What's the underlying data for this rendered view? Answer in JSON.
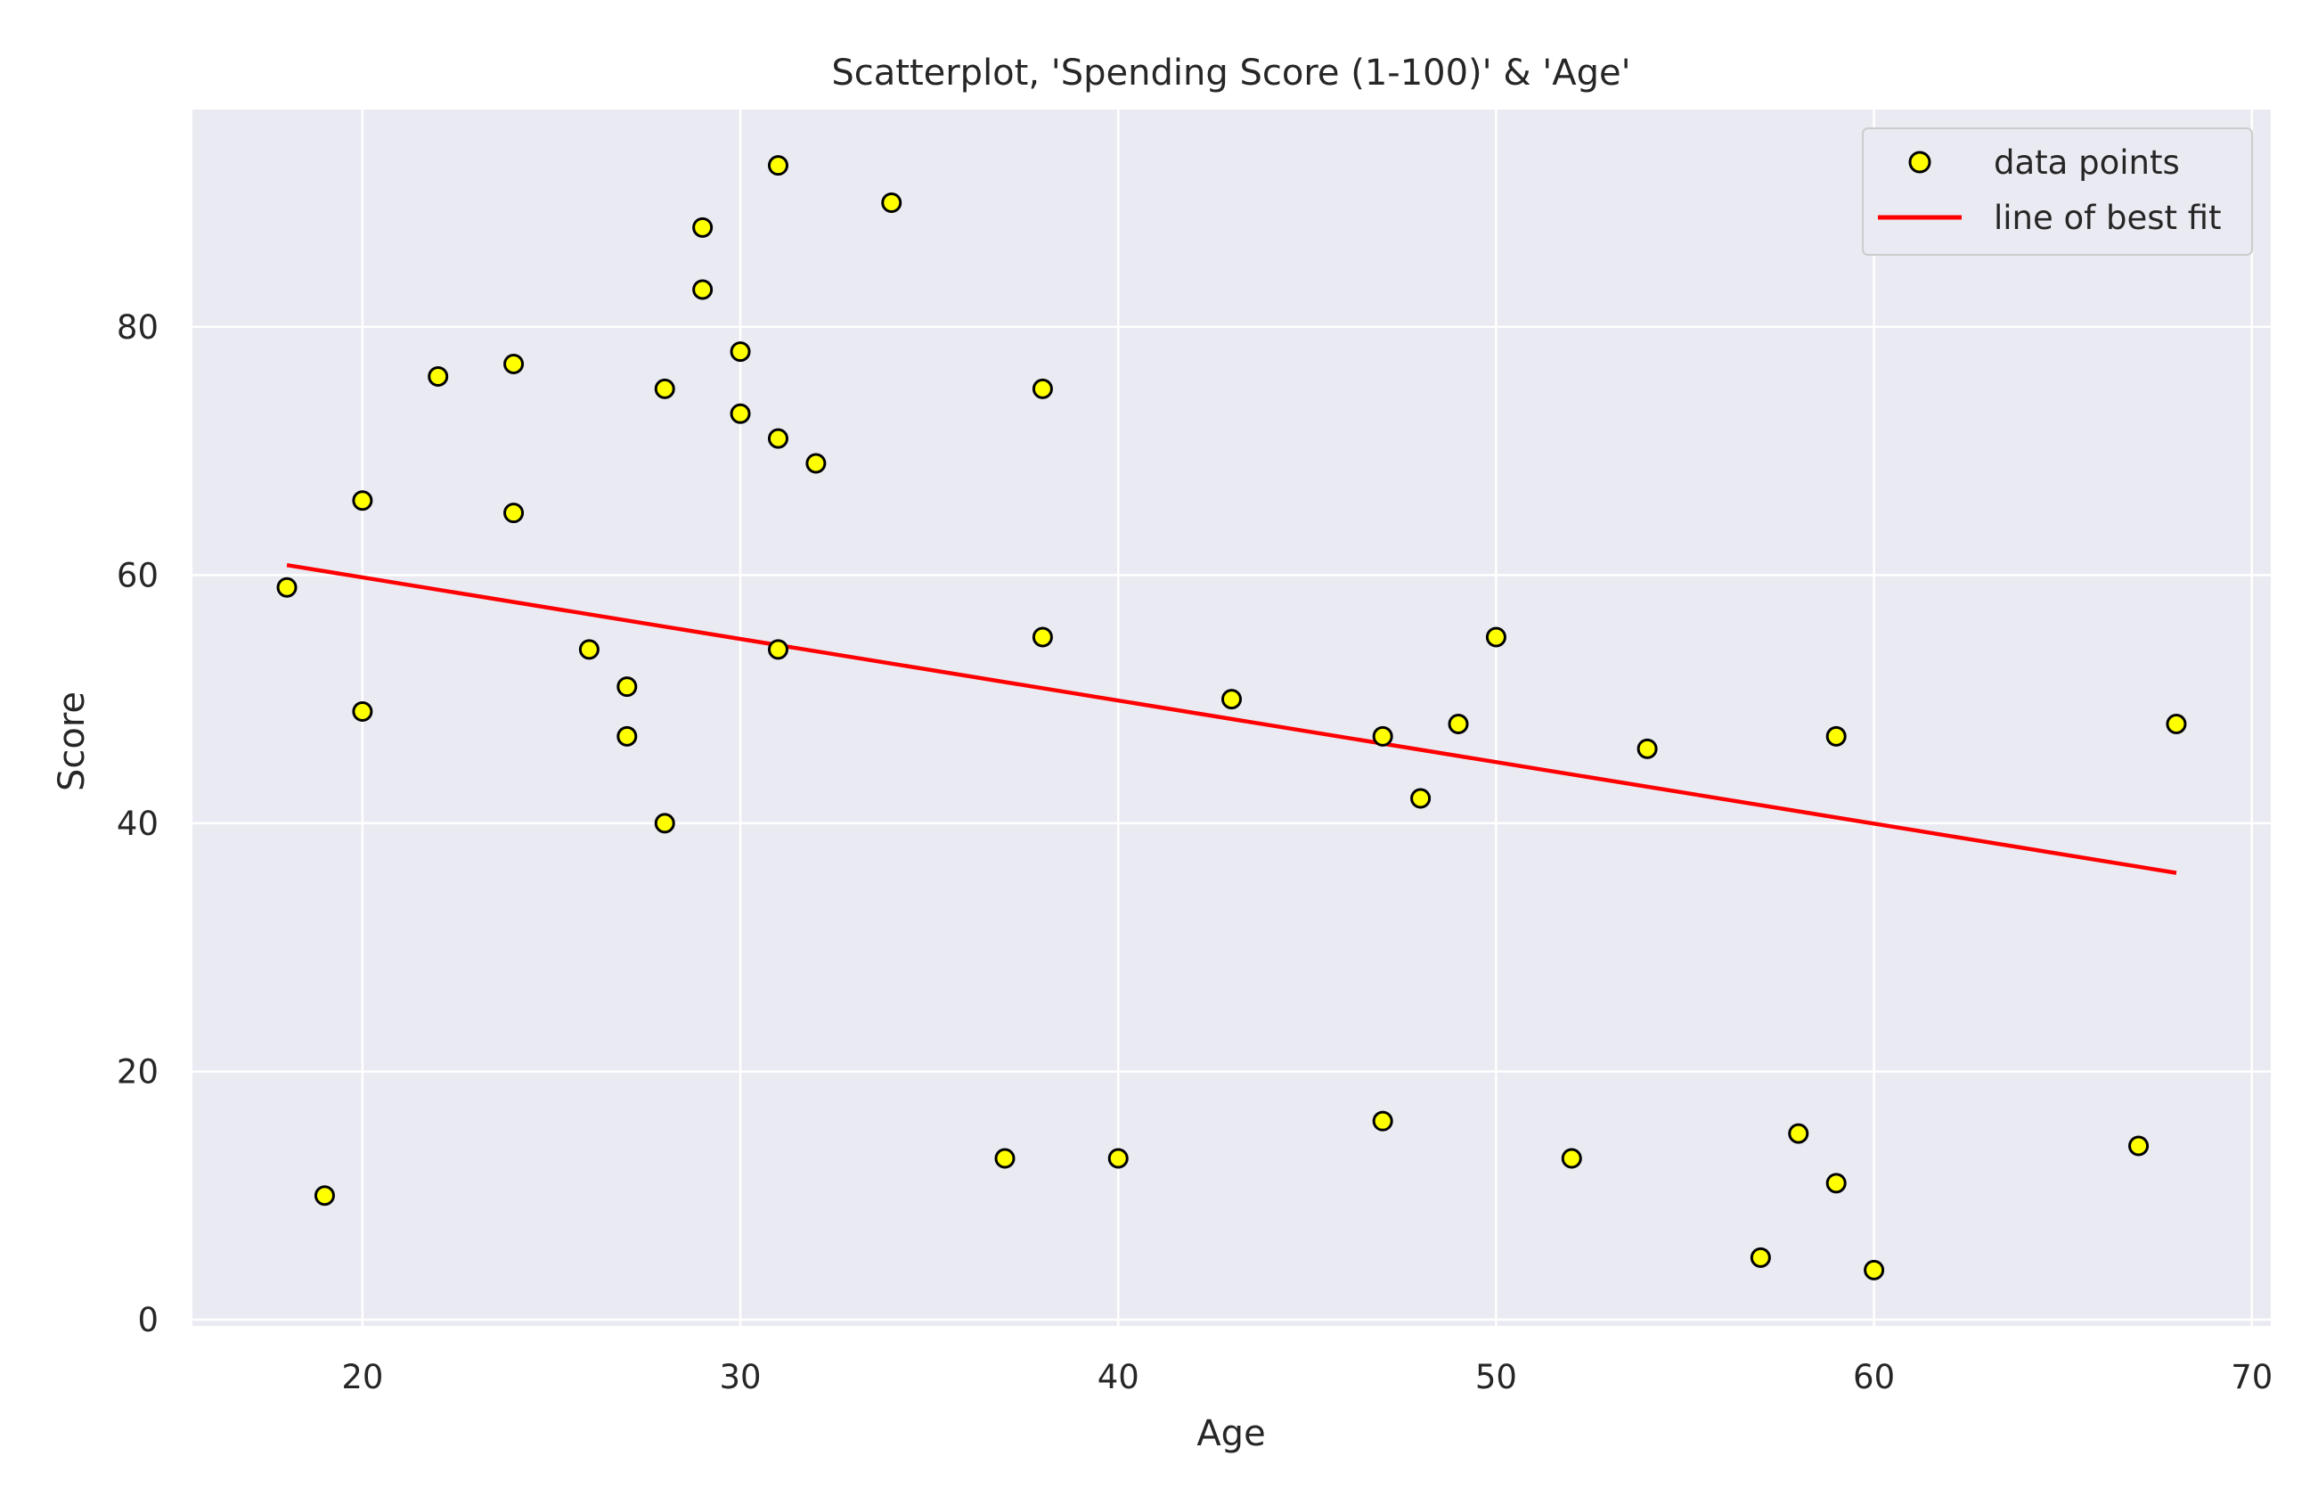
{
  "chart_data": {
    "type": "scatter",
    "title": "Scatterplot, 'Spending Score (1-100)' & 'Age'",
    "xlabel": "Age",
    "ylabel": "Score",
    "xlim": [
      15.5,
      70.5
    ],
    "ylim": [
      -0.5,
      97.5
    ],
    "xticks": [
      20,
      30,
      40,
      50,
      60,
      70
    ],
    "yticks": [
      0,
      20,
      40,
      60,
      80
    ],
    "xtick_labels": [
      "20",
      "30",
      "40",
      "50",
      "60",
      "70"
    ],
    "ytick_labels": [
      "0",
      "20",
      "40",
      "60",
      "80"
    ],
    "grid": true,
    "legend_position": "top-right",
    "colors": {
      "background": "#eaeaf2",
      "grid": "#ffffff",
      "point_fill": "#ffff00",
      "point_edge": "#000000",
      "fit_line": "#ff0000"
    },
    "series": [
      {
        "name": "data points",
        "kind": "scatter",
        "points": [
          [
            18,
            59
          ],
          [
            19,
            10
          ],
          [
            20,
            66
          ],
          [
            20,
            49
          ],
          [
            22,
            76
          ],
          [
            24,
            77
          ],
          [
            24,
            65
          ],
          [
            26,
            54
          ],
          [
            27,
            51
          ],
          [
            27,
            47
          ],
          [
            28,
            75
          ],
          [
            28,
            40
          ],
          [
            29,
            88
          ],
          [
            29,
            83
          ],
          [
            30,
            78
          ],
          [
            30,
            73
          ],
          [
            31,
            93
          ],
          [
            31,
            71
          ],
          [
            31,
            54
          ],
          [
            32,
            69
          ],
          [
            34,
            90
          ],
          [
            37,
            13
          ],
          [
            38,
            75
          ],
          [
            38,
            55
          ],
          [
            40,
            13
          ],
          [
            43,
            50
          ],
          [
            47,
            47
          ],
          [
            47,
            16
          ],
          [
            48,
            42
          ],
          [
            49,
            48
          ],
          [
            50,
            55
          ],
          [
            52,
            13
          ],
          [
            54,
            46
          ],
          [
            57,
            5
          ],
          [
            58,
            15
          ],
          [
            59,
            47
          ],
          [
            59,
            11
          ],
          [
            60,
            4
          ],
          [
            67,
            14
          ],
          [
            68,
            48
          ]
        ]
      },
      {
        "name": "line of best fit",
        "kind": "line",
        "points": [
          [
            18,
            60.8
          ],
          [
            68,
            36.0
          ]
        ]
      }
    ]
  }
}
